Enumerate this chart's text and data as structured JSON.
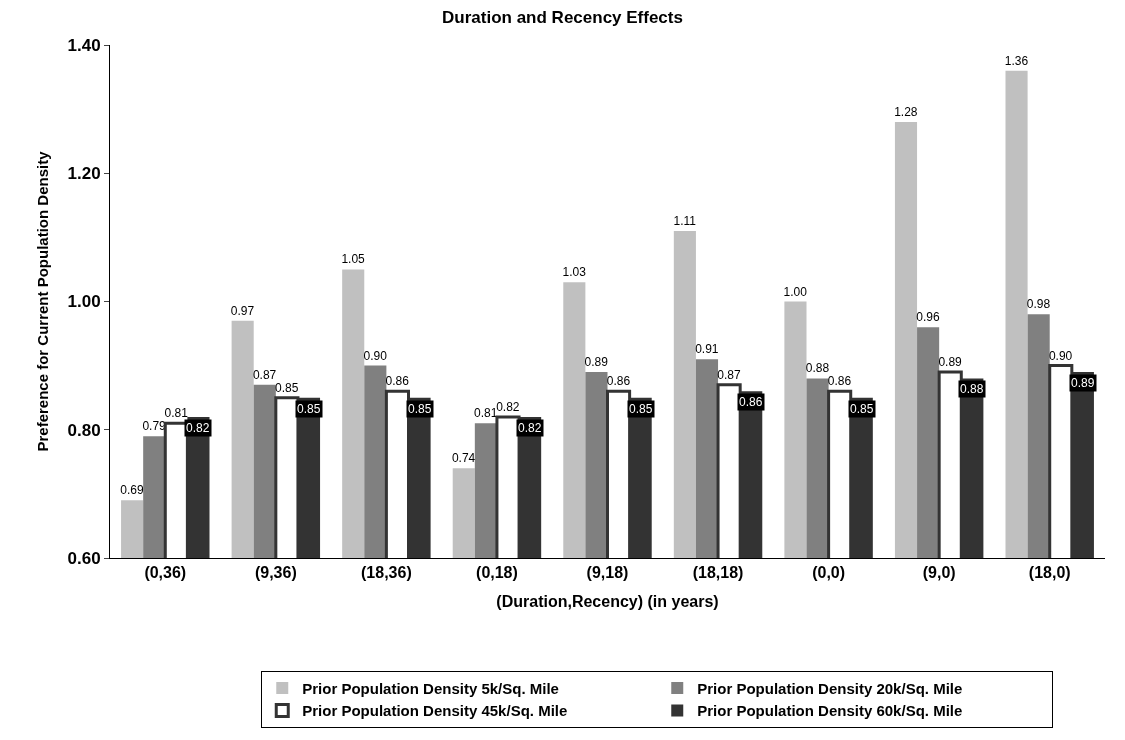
{
  "chart_data": {
    "type": "bar",
    "title": "Duration and Recency Effects",
    "xlabel": "(Duration,Recency) (in years)",
    "ylabel": "Preference for Current Population Density",
    "categories": [
      "(0,36)",
      "(9,36)",
      "(18,36)",
      "(0,18)",
      "(9,18)",
      "(18,18)",
      "(0,0)",
      "(9,0)",
      "(18,0)"
    ],
    "series": [
      {
        "name": "Prior Population Density 5k/Sq. Mile",
        "color": "#c0c0c0",
        "values": [
          0.69,
          0.97,
          1.05,
          0.74,
          1.03,
          1.11,
          1.0,
          1.28,
          1.36
        ],
        "value_labels": [
          "0.69",
          "0.97",
          "1.05",
          "0.74",
          "1.03",
          "1.11",
          "1.00",
          "1.28",
          "1.36"
        ]
      },
      {
        "name": "Prior Population Density 20k/Sq. Mile",
        "color": "#808080",
        "values": [
          0.79,
          0.87,
          0.9,
          0.81,
          0.89,
          0.91,
          0.88,
          0.96,
          0.98
        ],
        "value_labels": [
          "0.79",
          "0.87",
          "0.90",
          "0.81",
          "0.89",
          "0.91",
          "0.88",
          "0.96",
          "0.98"
        ]
      },
      {
        "name": "Prior Population Density 45k/Sq. Mile",
        "color": "#ffffff",
        "values": [
          0.81,
          0.85,
          0.86,
          0.82,
          0.86,
          0.87,
          0.86,
          0.89,
          0.9
        ],
        "value_labels": [
          "0.81",
          "0.85",
          "0.86",
          "0.82",
          "0.86",
          "0.87",
          "0.86",
          "0.89",
          "0.90"
        ]
      },
      {
        "name": "Prior Population Density 60k/Sq. Mile",
        "color": "#333333",
        "values": [
          0.82,
          0.85,
          0.85,
          0.82,
          0.85,
          0.86,
          0.85,
          0.88,
          0.89
        ],
        "value_labels": [
          "0.82",
          "0.85",
          "0.85",
          "0.82",
          "0.85",
          "0.86",
          "0.85",
          "0.88",
          "0.89"
        ]
      }
    ],
    "ylim": [
      0.6,
      1.4
    ],
    "yticks": [
      {
        "value": 0.6,
        "label": "0.60"
      },
      {
        "value": 0.8,
        "label": "0.80"
      },
      {
        "value": 1.0,
        "label": "1.00"
      },
      {
        "value": 1.2,
        "label": "1.20"
      },
      {
        "value": 1.4,
        "label": "1.40"
      }
    ],
    "legend": "bottom"
  }
}
